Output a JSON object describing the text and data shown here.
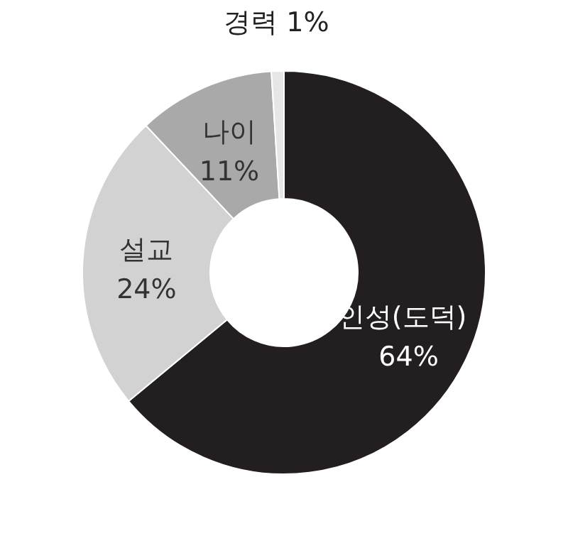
{
  "chart_data": {
    "type": "donut",
    "categories": [
      "인성(도덕)",
      "설교",
      "나이",
      "경력"
    ],
    "values": [
      64,
      24,
      11,
      1
    ],
    "value_labels": [
      "64%",
      "24%",
      "11%",
      "1%"
    ],
    "colors": [
      "#231f20",
      "#d2d2d2",
      "#a9a9a9",
      "#e6e6e6"
    ]
  }
}
